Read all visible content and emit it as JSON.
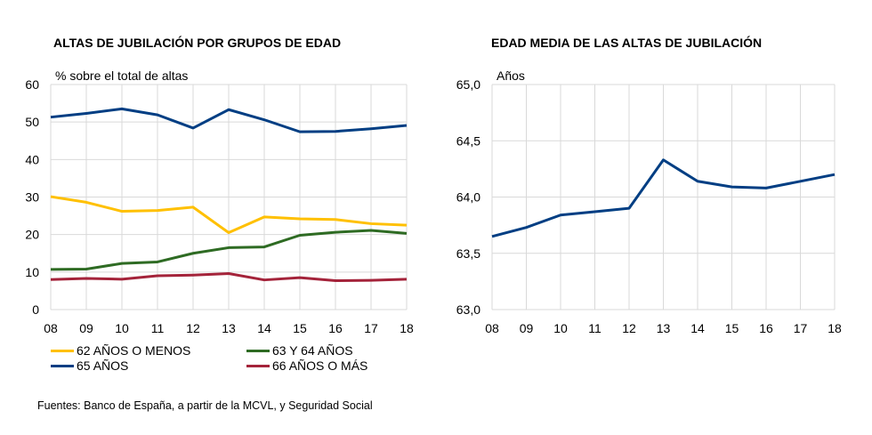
{
  "chart_data": [
    {
      "type": "line",
      "title": "ALTAS DE JUBILACIÓN POR GRUPOS DE EDAD",
      "ylabel": "% sobre el total de altas",
      "categories": [
        "08",
        "09",
        "10",
        "11",
        "12",
        "13",
        "14",
        "15",
        "16",
        "17",
        "18"
      ],
      "ylim": [
        0,
        60
      ],
      "yticks": [
        "0",
        "10",
        "20",
        "30",
        "40",
        "50",
        "60"
      ],
      "grid": true,
      "legend": "bottom",
      "series": [
        {
          "name": "62 AÑOS O MENOS",
          "color": "#FFC000",
          "values": [
            30.1,
            28.6,
            26.2,
            26.4,
            27.3,
            20.5,
            24.7,
            24.2,
            24.0,
            22.9,
            22.5
          ]
        },
        {
          "name": "63 Y 64 AÑOS",
          "color": "#2E6B23",
          "values": [
            10.7,
            10.8,
            12.3,
            12.7,
            15.0,
            16.5,
            16.7,
            19.8,
            20.6,
            21.1,
            20.3
          ]
        },
        {
          "name": "65 AÑOS",
          "color": "#003E83",
          "values": [
            51.3,
            52.3,
            53.5,
            51.9,
            48.4,
            53.3,
            50.6,
            47.4,
            47.5,
            48.2,
            49.1
          ]
        },
        {
          "name": "66 AÑOS O MÁS",
          "color": "#A4233A",
          "values": [
            8.0,
            8.3,
            8.1,
            9.0,
            9.2,
            9.6,
            7.9,
            8.5,
            7.7,
            7.8,
            8.1
          ]
        }
      ]
    },
    {
      "type": "line",
      "title": "EDAD MEDIA DE LAS ALTAS DE JUBILACIÓN",
      "ylabel": "Años",
      "categories": [
        "08",
        "09",
        "10",
        "11",
        "12",
        "13",
        "14",
        "15",
        "16",
        "17",
        "18"
      ],
      "ylim": [
        63.0,
        65.0
      ],
      "yticks": [
        "63,0",
        "63,5",
        "64,0",
        "64,5",
        "65,0"
      ],
      "grid": true,
      "series": [
        {
          "color": "#003E83",
          "values": [
            63.65,
            63.73,
            63.84,
            63.87,
            63.9,
            64.33,
            64.14,
            64.09,
            64.08,
            64.14,
            64.2
          ]
        }
      ]
    }
  ],
  "source": "Fuentes: Banco de España, a partir de la MCVL, y Seguridad Social"
}
